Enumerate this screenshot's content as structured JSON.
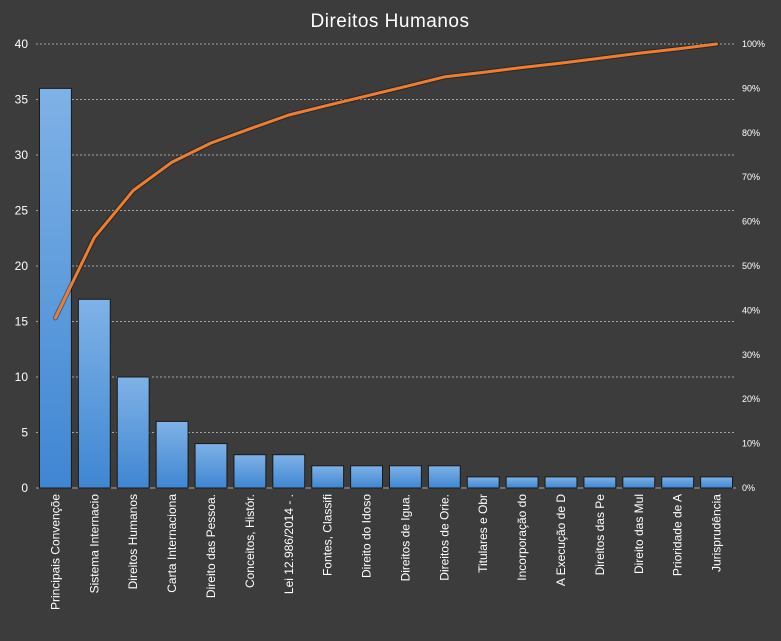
{
  "chart_data": {
    "type": "bar",
    "title": "Direitos Humanos",
    "categories": [
      "Principais Convençõe",
      "Sistema Internacio",
      "Direitos Humanos",
      "Carta Internaciona",
      "Direito das Pessoa.",
      "Conceitos, Histór.",
      "Lei 12.986/2014 - .",
      "Fontes, Classifi",
      "Direito do Idoso",
      "Direitos de Igua.",
      "Direitos de Orie.",
      "Titulares e Obr",
      "Incorporação do",
      "A Execução de D",
      "Direitos das Pe",
      "Direito das Mul",
      "Prioridade de A",
      "Jurisprudência"
    ],
    "series": [
      {
        "type": "bar",
        "values": [
          36,
          17,
          10,
          6,
          4,
          3,
          3,
          2,
          2,
          2,
          2,
          1,
          1,
          1,
          1,
          1,
          1,
          1
        ]
      },
      {
        "type": "line",
        "axis": "secondary",
        "values": [
          38.3,
          56.4,
          67.0,
          73.4,
          77.7,
          80.9,
          84.0,
          86.2,
          88.3,
          90.4,
          92.6,
          93.6,
          94.7,
          95.7,
          96.8,
          97.9,
          98.9,
          100
        ]
      }
    ],
    "y_ticks": [
      "0",
      "5",
      "10",
      "15",
      "20",
      "25",
      "30",
      "35",
      "40"
    ],
    "y2_ticks": [
      "0%",
      "10%",
      "20%",
      "30%",
      "40%",
      "50%",
      "60%",
      "70%",
      "80%",
      "90%",
      "100%"
    ],
    "ylim": [
      0,
      40
    ],
    "y2lim": [
      0,
      100
    ],
    "grid": true,
    "legend": "none",
    "colors": {
      "background": "#3c3c3c",
      "bar_fill_light": "#7fb2e6",
      "bar_fill_dark": "#3f86d3",
      "bar_stroke": "#1a1a1a",
      "line": "#ed7d31",
      "grid": "#c8c8c8",
      "text": "#ffffff"
    }
  }
}
